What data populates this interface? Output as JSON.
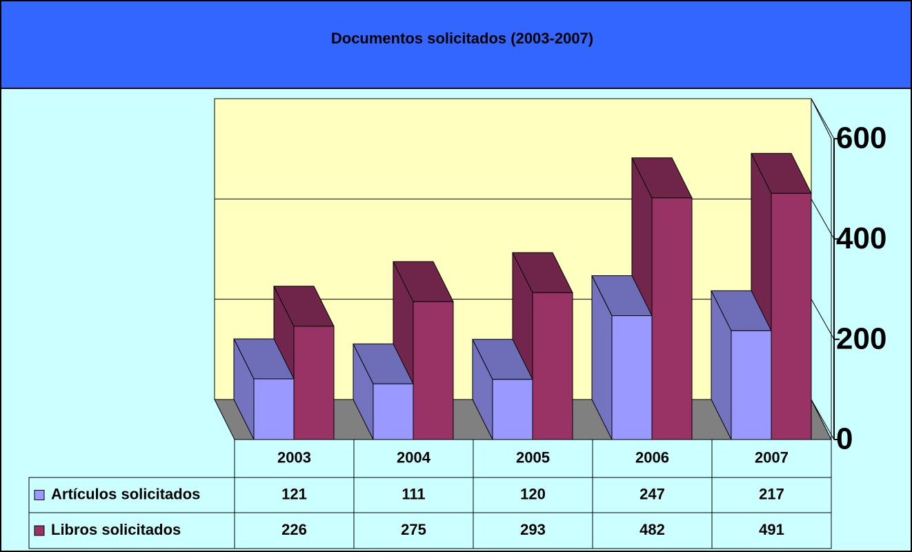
{
  "chart_data": {
    "type": "bar3d",
    "title": "Documentos solicitados (2003-2007)",
    "categories": [
      "2003",
      "2004",
      "2005",
      "2006",
      "2007"
    ],
    "series": [
      {
        "name": "Artículos solicitados",
        "color": "#9999ff",
        "values": [
          121,
          111,
          120,
          247,
          217
        ]
      },
      {
        "name": "Libros solicitados",
        "color": "#993366",
        "values": [
          226,
          275,
          293,
          482,
          491
        ]
      }
    ],
    "ylim": [
      0,
      600
    ],
    "yticks": [
      0,
      200,
      400,
      600
    ],
    "grid": true
  }
}
